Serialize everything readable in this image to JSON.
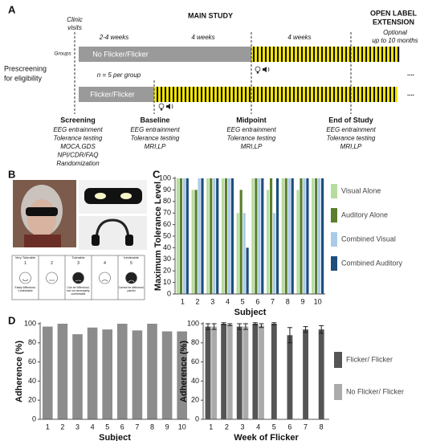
{
  "diagram": {
    "label": "A",
    "clinic_visits": [
      "Clinic",
      "visits"
    ],
    "main_study": "MAIN STUDY",
    "open_label": [
      "OPEN LABEL",
      "EXTENSION"
    ],
    "durations": [
      "2-4 weeks",
      "4 weeks",
      "4 weeks"
    ],
    "optional": [
      "Optional",
      "up to 10 months"
    ],
    "groups_label": "Groups",
    "groups": [
      "No Flicker/Flicker",
      "Flicker/Flicker"
    ],
    "n_per_group": "n = 5 per group",
    "prescreening": [
      "Prescreening",
      "for eligibility"
    ],
    "ellipsis": [
      "....",
      "...."
    ],
    "milestones": [
      {
        "title": "Screening",
        "items": [
          "EEG entrainment",
          "Tolerance testing",
          "MOCA,GDS",
          "NPI/CDR/FAQ",
          "Randomization"
        ]
      },
      {
        "title": "Baseline",
        "items": [
          "EEG entrainment",
          "Tolerance testing",
          "MRI,LP"
        ]
      },
      {
        "title": "Midpoint",
        "items": [
          "EEG entrainment",
          "Tolerance testing",
          "MRI,LP"
        ]
      },
      {
        "title": "End of Study",
        "items": [
          "EEG entrainment",
          "Tolerance testing",
          "MRI,LP"
        ]
      }
    ]
  },
  "panel_b": {
    "label": "B",
    "scale": [
      {
        "number": 1,
        "category": "Very Tolerable",
        "description": "Easily Withstood, Comfortable"
      },
      {
        "number": 2
      },
      {
        "number": 3,
        "category": "Tolerable",
        "description": "Can be Withstood, but not necessarily comfortable"
      },
      {
        "number": 4
      },
      {
        "number": 5,
        "category": "Intolerable",
        "description": "Cannot be withstood, painful"
      }
    ]
  },
  "chart_data": [
    {
      "type": "bar",
      "panel_label": "C",
      "y_label": "Maximum Tolerance Level",
      "x_label": "Subject",
      "categories": [
        1,
        2,
        3,
        4,
        5,
        6,
        7,
        8,
        9,
        10
      ],
      "ylim": [
        0,
        100
      ],
      "yticks": [
        0,
        10,
        20,
        30,
        40,
        50,
        60,
        70,
        80,
        90,
        100
      ],
      "legend": "right",
      "series": [
        {
          "name": "Visual Alone",
          "color": "#b6dc9e",
          "values": [
            100,
            90,
            100,
            100,
            70,
            100,
            90,
            100,
            90,
            100
          ]
        },
        {
          "name": "Auditory Alone",
          "color": "#5b7f2c",
          "values": [
            100,
            90,
            100,
            100,
            90,
            100,
            100,
            100,
            100,
            100
          ]
        },
        {
          "name": "Combined Visual",
          "color": "#a9cbe9",
          "values": [
            100,
            100,
            100,
            100,
            70,
            100,
            70,
            100,
            100,
            100
          ]
        },
        {
          "name": "Combined Auditory",
          "color": "#1d4e7c",
          "values": [
            100,
            100,
            100,
            100,
            40,
            100,
            100,
            100,
            100,
            100
          ]
        }
      ]
    },
    {
      "type": "bar",
      "panel_label": "D",
      "y_label": "Adherence (%)",
      "x_label": "Subject",
      "categories": [
        1,
        2,
        3,
        4,
        5,
        6,
        7,
        8,
        9,
        10
      ],
      "ylim": [
        0,
        100
      ],
      "yticks": [
        0,
        20,
        40,
        60,
        80,
        100
      ],
      "series": [
        {
          "color": "#8c8c8c",
          "values": [
            97,
            100,
            89,
            96,
            94,
            100,
            93,
            100,
            92,
            92
          ]
        }
      ]
    },
    {
      "type": "bar",
      "y_label": "Adherence (%)",
      "x_label": "Week of Flicker",
      "categories": [
        1,
        2,
        3,
        4,
        5,
        6,
        7,
        8
      ],
      "ylim": [
        0,
        100
      ],
      "yticks": [
        0,
        20,
        40,
        60,
        80,
        100
      ],
      "legend": "right",
      "series": [
        {
          "name": "Flicker/ Flicker",
          "color": "#555555",
          "values": [
            97,
            100,
            97,
            100,
            100,
            88,
            94,
            94
          ],
          "errors": [
            3,
            1,
            3,
            1,
            1,
            8,
            3,
            4
          ]
        },
        {
          "name": "No Flicker/ Flicker",
          "color": "#ababab",
          "values": [
            97,
            99,
            97,
            98,
            null,
            null,
            null,
            null
          ],
          "errors": [
            3,
            1,
            3,
            2,
            null,
            null,
            null,
            null
          ]
        }
      ]
    }
  ]
}
